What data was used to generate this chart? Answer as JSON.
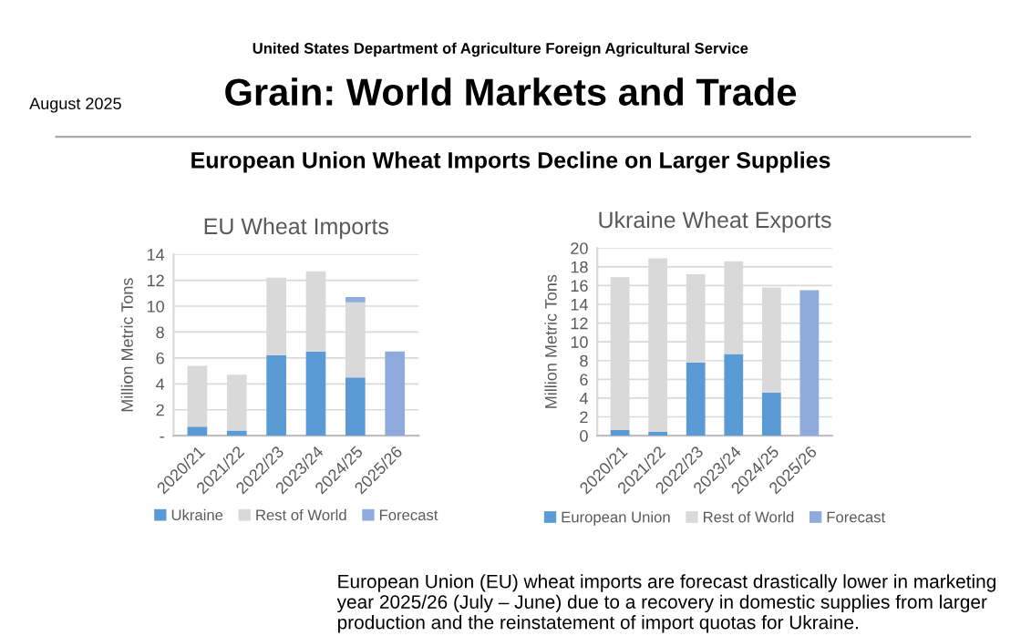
{
  "chart_data": [
    {
      "type": "bar",
      "title": "EU Wheat Imports",
      "ylabel": "Million Metric Tons",
      "stacked": true,
      "legend": "bottom",
      "grid": "y",
      "annotations": [
        "August 2025",
        "United States Department of Agriculture Foreign Agricultural Service",
        "Grain: World Markets and Trade",
        "European Union Wheat Imports Decline on Larger Supplies"
      ],
      "categories": [
        "2020/21",
        "2021/22",
        "2022/23",
        "2023/24",
        "2024/25",
        "2025/26"
      ],
      "series": [
        {
          "name": "Ukraine",
          "color": "#5b9bd5",
          "values": [
            0.7,
            0.4,
            6.2,
            6.5,
            4.5,
            null
          ]
        },
        {
          "name": "Rest of World",
          "color": "#d9d9d9",
          "values": [
            4.7,
            4.3,
            6.0,
            6.2,
            5.8,
            null
          ]
        },
        {
          "name": "Forecast",
          "color": "#8faadc",
          "values": [
            null,
            null,
            null,
            null,
            0.4,
            6.5
          ]
        }
      ],
      "ylim": [
        0,
        14
      ],
      "yticks": [
        {
          "value": 0,
          "label": "-"
        },
        2,
        4,
        6,
        8,
        10,
        12,
        14
      ]
    },
    {
      "type": "bar",
      "title": "Ukraine Wheat Exports",
      "ylabel": "Million Metric Tons",
      "stacked": true,
      "legend": "bottom",
      "grid": "y",
      "annotations": [
        "European Union (EU) wheat imports are forecast drastically lower in marketing year 2025/26 (July – June) due to a recovery in domestic supplies from larger production and the reinstatement of import quotas for Ukraine."
      ],
      "categories": [
        "2020/21",
        "2021/22",
        "2022/23",
        "2023/24",
        "2024/25",
        "2025/26"
      ],
      "series": [
        {
          "name": "European Union",
          "color": "#5b9bd5",
          "values": [
            0.6,
            0.4,
            7.8,
            8.7,
            4.6,
            null
          ]
        },
        {
          "name": "Rest of World",
          "color": "#d9d9d9",
          "values": [
            16.3,
            18.5,
            9.4,
            9.9,
            11.2,
            null
          ]
        },
        {
          "name": "Forecast",
          "color": "#8faadc",
          "values": [
            null,
            null,
            null,
            null,
            null,
            15.5
          ]
        }
      ],
      "ylim": [
        0,
        20
      ],
      "yticks": [
        0,
        2,
        4,
        6,
        8,
        10,
        12,
        14,
        16,
        18,
        20
      ]
    }
  ]
}
